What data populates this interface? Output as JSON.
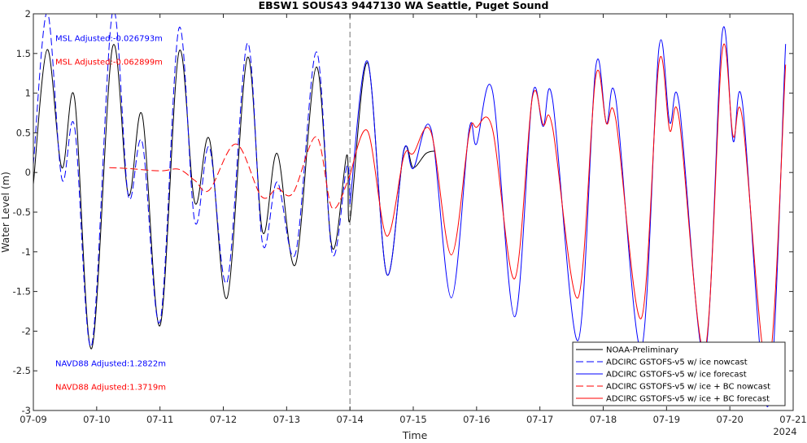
{
  "chart_data": {
    "type": "line",
    "title": "EBSW1 SOUS43 9447130 WA Seattle, Puget Sound",
    "xlabel": "Time",
    "ylabel": "Water Level (m)",
    "xlim": [
      "2024-07-09",
      "2024-07-21"
    ],
    "ylim": [
      -3,
      2
    ],
    "x_ticks": [
      "07-09",
      "07-10",
      "07-11",
      "07-12",
      "07-13",
      "07-14",
      "07-15",
      "07-16",
      "07-17",
      "07-18",
      "07-19",
      "07-20",
      "07-21"
    ],
    "x_tick_values": [
      0,
      1,
      2,
      3,
      4,
      5,
      6,
      7,
      8,
      9,
      10,
      11,
      12
    ],
    "x_year_label": "2024",
    "y_ticks": [
      "-3",
      "-2.5",
      "-2",
      "-1.5",
      "-1",
      "-0.5",
      "0",
      "0.5",
      "1",
      "1.5",
      "2"
    ],
    "y_tick_values": [
      -3,
      -2.5,
      -2,
      -1.5,
      -1,
      -0.5,
      0,
      0.5,
      1,
      1.5,
      2
    ],
    "grid": false,
    "legend_position": "bottom-right",
    "forecast_start": "2024-07-14",
    "forecast_start_value": 5,
    "annotations": [
      {
        "text": "MSL Adjusted:-0.026793m",
        "color": "#0000ff"
      },
      {
        "text": "MSL Adjusted:-0.062899m",
        "color": "#ff0000"
      },
      {
        "text": "NAVD88 Adjusted:1.2822m",
        "color": "#0000ff"
      },
      {
        "text": "NAVD88 Adjusted:1.3719m",
        "color": "#ff0000"
      }
    ],
    "series": [
      {
        "name": "NOAA-Preliminary",
        "color": "#000000",
        "dash": "solid",
        "points": [
          [
            0.0,
            -0.15
          ],
          [
            0.22,
            1.55
          ],
          [
            0.45,
            0.06
          ],
          [
            0.65,
            0.94
          ],
          [
            0.92,
            -2.22
          ],
          [
            1.25,
            1.58
          ],
          [
            1.5,
            -0.28
          ],
          [
            1.72,
            0.72
          ],
          [
            2.0,
            -1.93
          ],
          [
            2.3,
            1.52
          ],
          [
            2.55,
            -0.38
          ],
          [
            2.78,
            0.42
          ],
          [
            3.06,
            -1.58
          ],
          [
            3.38,
            1.45
          ],
          [
            3.62,
            -0.75
          ],
          [
            3.85,
            0.24
          ],
          [
            4.14,
            -1.16
          ],
          [
            4.47,
            1.33
          ],
          [
            4.72,
            -0.95
          ],
          [
            4.95,
            0.22
          ],
          [
            5.0,
            -0.6
          ],
          [
            5.28,
            1.38
          ],
          [
            5.58,
            -1.28
          ],
          [
            5.85,
            0.27
          ],
          [
            6.0,
            0.06
          ],
          [
            6.2,
            0.24
          ],
          [
            6.35,
            0.27
          ]
        ]
      },
      {
        "name": "ADCIRC GSTOFS-v5 w/ ice nowcast",
        "color": "#0000ff",
        "dash": "long",
        "points": [
          [
            0.0,
            0.1
          ],
          [
            0.22,
            2.02
          ],
          [
            0.45,
            -0.08
          ],
          [
            0.65,
            0.58
          ],
          [
            0.92,
            -2.18
          ],
          [
            1.25,
            2.02
          ],
          [
            1.5,
            -0.3
          ],
          [
            1.72,
            0.38
          ],
          [
            2.0,
            -1.88
          ],
          [
            2.3,
            1.82
          ],
          [
            2.55,
            -0.62
          ],
          [
            2.78,
            0.32
          ],
          [
            3.06,
            -1.38
          ],
          [
            3.38,
            1.63
          ],
          [
            3.62,
            -0.9
          ],
          [
            3.85,
            -0.12
          ],
          [
            4.14,
            -1.02
          ],
          [
            4.47,
            1.52
          ],
          [
            4.72,
            -1.02
          ],
          [
            4.95,
            0.08
          ],
          [
            5.0,
            -0.4
          ]
        ]
      },
      {
        "name": "ADCIRC GSTOFS-v5 w/ ice forecast",
        "color": "#0000ff",
        "dash": "solid",
        "points": [
          [
            5.0,
            -0.4
          ],
          [
            5.28,
            1.4
          ],
          [
            5.58,
            -1.28
          ],
          [
            5.85,
            0.28
          ],
          [
            6.0,
            0.05
          ],
          [
            6.28,
            0.55
          ],
          [
            6.6,
            -1.58
          ],
          [
            6.88,
            0.53
          ],
          [
            7.0,
            0.36
          ],
          [
            7.25,
            1.03
          ],
          [
            7.6,
            -1.82
          ],
          [
            7.88,
            0.96
          ],
          [
            8.05,
            0.58
          ],
          [
            8.2,
            0.92
          ],
          [
            8.6,
            -2.12
          ],
          [
            8.88,
            1.32
          ],
          [
            9.05,
            0.62
          ],
          [
            9.2,
            0.92
          ],
          [
            9.6,
            -2.22
          ],
          [
            9.88,
            1.57
          ],
          [
            10.05,
            0.63
          ],
          [
            10.2,
            0.86
          ],
          [
            10.6,
            -2.32
          ],
          [
            10.88,
            1.76
          ],
          [
            11.05,
            0.4
          ],
          [
            11.2,
            0.87
          ],
          [
            11.6,
            -2.95
          ],
          [
            11.88,
            1.62
          ]
        ]
      },
      {
        "name": "ADCIRC GSTOFS-v5 w/ ice + BC nowcast",
        "color": "#ff0000",
        "dash": "long",
        "points": [
          [
            1.2,
            0.06
          ],
          [
            1.5,
            0.05
          ],
          [
            2.0,
            0.02
          ],
          [
            2.3,
            0.04
          ],
          [
            2.55,
            -0.1
          ],
          [
            2.78,
            -0.22
          ],
          [
            3.2,
            0.36
          ],
          [
            3.6,
            -0.3
          ],
          [
            3.85,
            -0.2
          ],
          [
            4.1,
            -0.26
          ],
          [
            4.47,
            0.45
          ],
          [
            4.72,
            -0.45
          ],
          [
            5.0,
            -0.03
          ]
        ]
      },
      {
        "name": "ADCIRC GSTOFS-v5 w/ ice + BC forecast",
        "color": "#ff0000",
        "dash": "solid",
        "points": [
          [
            5.0,
            -0.03
          ],
          [
            5.28,
            0.52
          ],
          [
            5.58,
            -0.8
          ],
          [
            5.85,
            0.2
          ],
          [
            6.0,
            0.24
          ],
          [
            6.28,
            0.51
          ],
          [
            6.6,
            -1.04
          ],
          [
            6.88,
            0.48
          ],
          [
            7.0,
            0.57
          ],
          [
            7.25,
            0.55
          ],
          [
            7.6,
            -1.34
          ],
          [
            7.88,
            0.94
          ],
          [
            8.05,
            0.6
          ],
          [
            8.2,
            0.57
          ],
          [
            8.6,
            -1.58
          ],
          [
            8.88,
            1.2
          ],
          [
            9.05,
            0.62
          ],
          [
            9.2,
            0.66
          ],
          [
            9.6,
            -1.84
          ],
          [
            9.88,
            1.38
          ],
          [
            10.05,
            0.53
          ],
          [
            10.2,
            0.67
          ],
          [
            10.6,
            -2.25
          ],
          [
            10.88,
            1.53
          ],
          [
            11.05,
            0.46
          ],
          [
            11.2,
            0.67
          ],
          [
            11.6,
            -2.5
          ],
          [
            11.88,
            1.36
          ]
        ]
      }
    ]
  }
}
